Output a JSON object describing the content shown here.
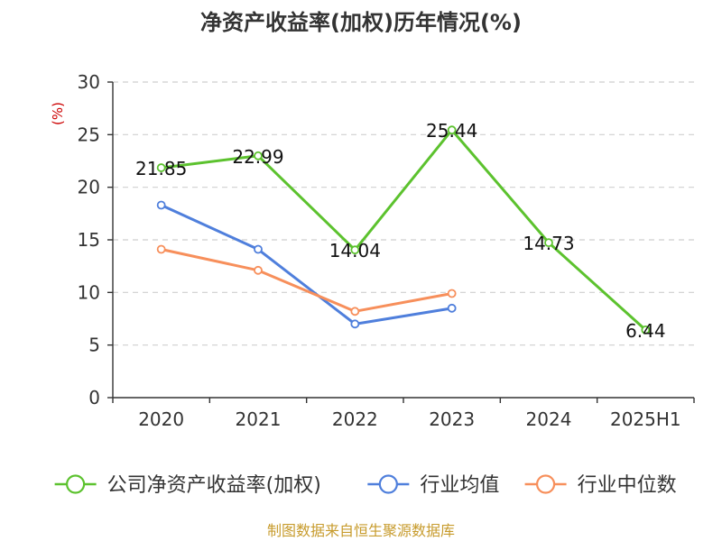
{
  "chart_data": {
    "type": "line",
    "title": "净资产收益率(加权)历年情况(%)",
    "ylabel": "(%)",
    "categories": [
      "2020",
      "2021",
      "2022",
      "2023",
      "2024",
      "2025H1"
    ],
    "ylim": [
      0,
      30
    ],
    "yticks": [
      0,
      5,
      10,
      15,
      20,
      25,
      30
    ],
    "grid": true,
    "legend_position": "bottom",
    "series": [
      {
        "name": "公司净资产收益率(加权)",
        "color": "#5cc22e",
        "labeled": true,
        "values": [
          21.85,
          22.99,
          14.04,
          25.44,
          14.73,
          6.44
        ],
        "labels": [
          "21.85",
          "22.99",
          "14.04",
          "25.44",
          "14.73",
          "6.44"
        ]
      },
      {
        "name": "行业均值",
        "color": "#4f7fdc",
        "labeled": false,
        "values": [
          18.3,
          14.1,
          7.0,
          8.5,
          null,
          null
        ]
      },
      {
        "name": "行业中位数",
        "color": "#f78f5b",
        "labeled": false,
        "values": [
          14.1,
          12.1,
          8.2,
          9.9,
          null,
          null
        ]
      }
    ]
  },
  "source": "制图数据来自恒生聚源数据库"
}
